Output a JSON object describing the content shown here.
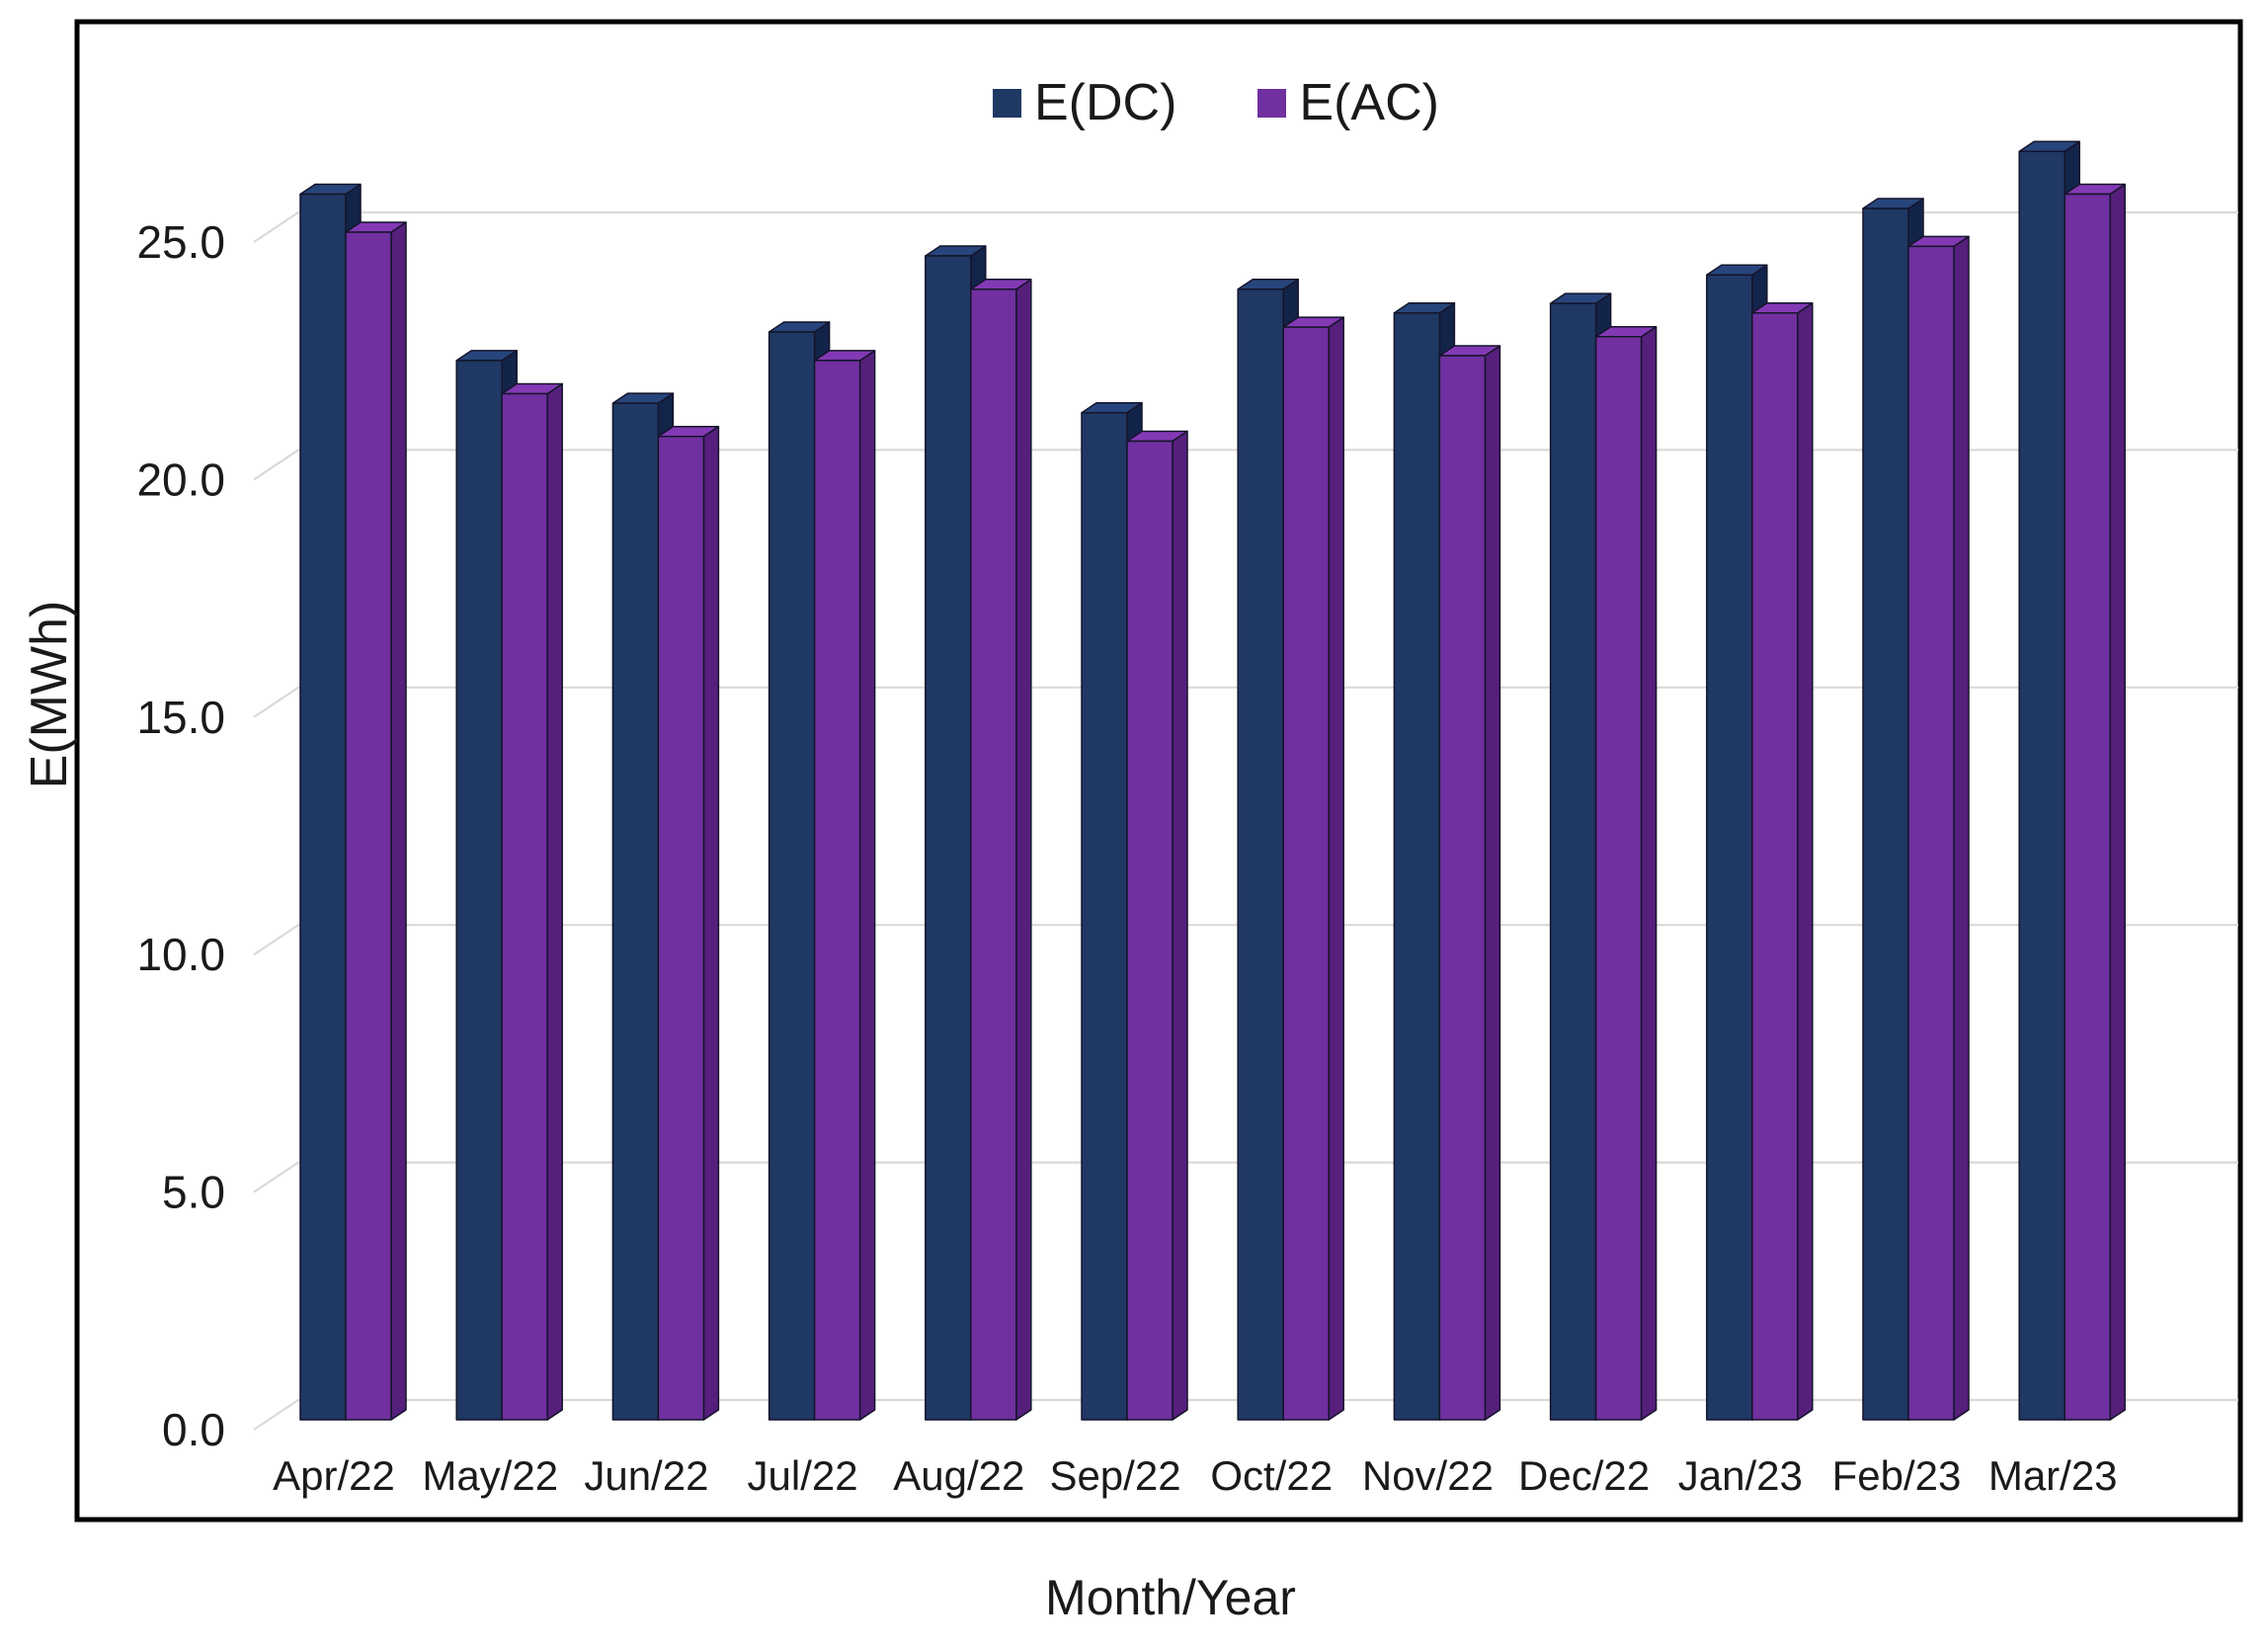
{
  "chart_data": {
    "type": "bar",
    "title": "",
    "xlabel": "Month/Year",
    "ylabel": "E(MWh)",
    "categories": [
      "Apr/22",
      "May/22",
      "Jun/22",
      "Jul/22",
      "Aug/22",
      "Sep/22",
      "Oct/22",
      "Nov/22",
      "Dec/22",
      "Jan/23",
      "Feb/23",
      "Mar/23"
    ],
    "series": [
      {
        "name": "E(DC)",
        "color": "#1F3864",
        "color_top": "#27457C",
        "color_side": "#13244A",
        "values": [
          25.8,
          22.3,
          21.4,
          22.9,
          24.5,
          21.2,
          23.8,
          23.3,
          23.5,
          24.1,
          25.5,
          26.7
        ]
      },
      {
        "name": "E(AC)",
        "color": "#7030A0",
        "color_top": "#8339B4",
        "color_side": "#561F7C",
        "values": [
          25.0,
          21.6,
          20.7,
          22.3,
          23.8,
          20.6,
          23.0,
          22.4,
          22.8,
          23.3,
          24.7,
          25.8
        ]
      }
    ],
    "ylim": [
      0,
      27.5
    ],
    "yticks": [
      0,
      5,
      10,
      15,
      20,
      25
    ],
    "ytick_labels": [
      "0.0",
      "5.0",
      "10.0",
      "15.0",
      "20.0",
      "25.0"
    ],
    "grid": true,
    "style": "3d-clustered-column",
    "legend_position": "top-center",
    "gridline_color": "#d9d9d9",
    "bar_outline_color": "#14142a",
    "text_color": "#1a1a1a",
    "frame_color": "#000000",
    "background_color": "#ffffff"
  }
}
